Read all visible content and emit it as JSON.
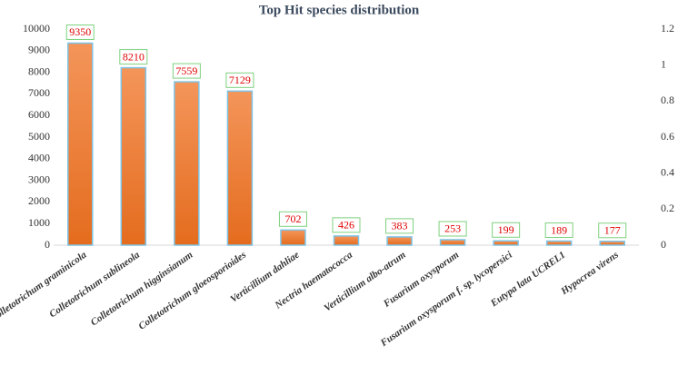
{
  "chart_data": {
    "type": "bar",
    "title": "Top Hit species distribution",
    "categories": [
      "Colletotrichum graminicola",
      "Colletotrichum sublineola",
      "Colletotrichum higginsianum",
      "Colletotrichum gloeosporioides",
      "Verticillium dahliae",
      "Nectria haematococca",
      "Verticillium albo-atrum",
      "Fusarium oxysporum",
      "Fusarium oxysporum f. sp. lycopersici",
      "Eutypa lata UCREL1",
      "Hypocrea virens"
    ],
    "values": [
      9350,
      8210,
      7559,
      7129,
      702,
      426,
      383,
      253,
      199,
      189,
      177
    ],
    "color": "#ed7d31",
    "ylim": [
      0,
      10000
    ],
    "yticks": [
      0,
      1000,
      2000,
      3000,
      4000,
      5000,
      6000,
      7000,
      8000,
      9000,
      10000
    ],
    "y2lim": [
      0,
      1.2
    ],
    "y2ticks": [
      0,
      0.2,
      0.4,
      0.6,
      0.8,
      1,
      1.2
    ],
    "grid": false
  }
}
